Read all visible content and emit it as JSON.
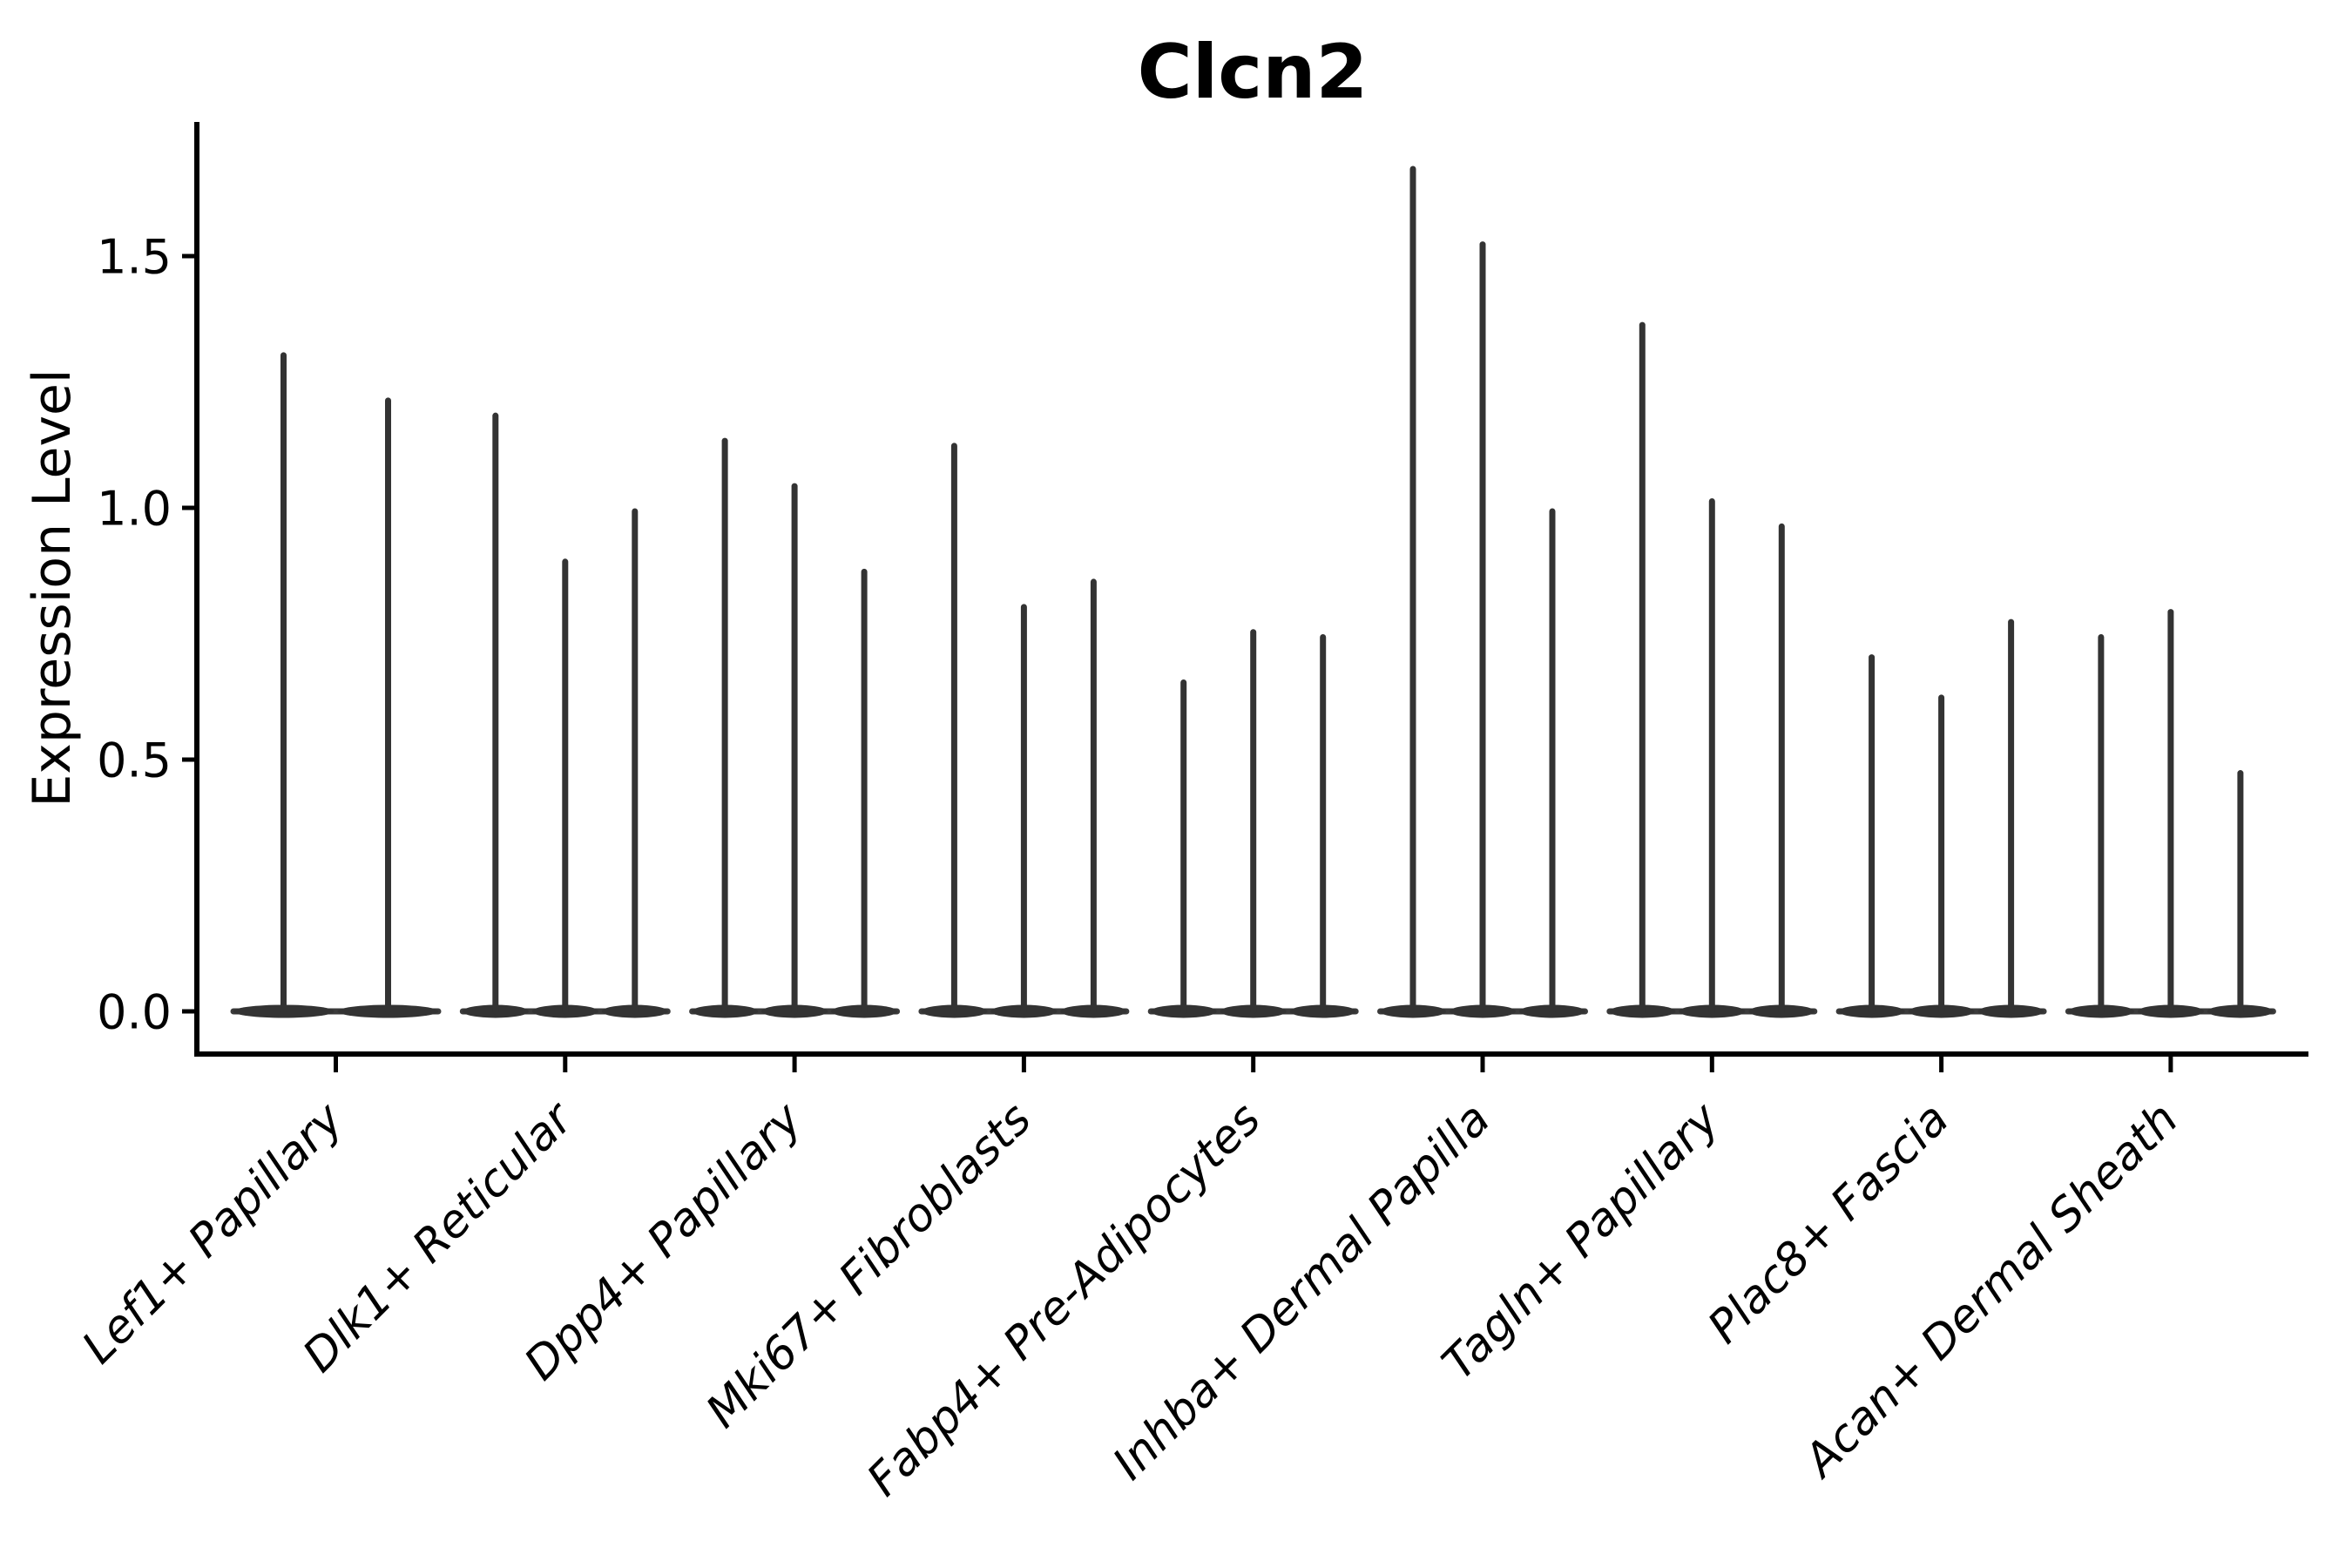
{
  "figure": {
    "background_color": "#ffffff",
    "axis_color": "#000000",
    "violin_color": "#333333",
    "baseline_color": "#3b3b3b"
  },
  "chart_data": {
    "type": "violin",
    "title": "Clcn2",
    "xlabel": "",
    "ylabel": "Expression Level",
    "legend": "none",
    "grid": false,
    "ylim": [
      -0.085,
      1.77
    ],
    "ytick_labels": [
      "0.0",
      "0.5",
      "1.0",
      "1.5"
    ],
    "ytick_values": [
      0.0,
      0.5,
      1.0,
      1.5
    ],
    "categories": [
      "Lef1+ Papillary",
      "Dlk1+ Reticular",
      "Dpp4+ Papillary",
      "Mki67+ Fibroblasts",
      "Fabp4+ Pre-Adipocytes",
      "Inhba+ Dermal Papilla",
      "Tagln+ Papillary",
      "Plac8+ Fascia",
      "Acan+ Dermal Sheath"
    ],
    "groups": [
      {
        "category": "Lef1+ Papillary",
        "violin_maxima": [
          1.31,
          1.22
        ]
      },
      {
        "category": "Dlk1+ Reticular",
        "violin_maxima": [
          1.19,
          0.9,
          1.0
        ]
      },
      {
        "category": "Dpp4+ Papillary",
        "violin_maxima": [
          1.14,
          1.05,
          0.88
        ]
      },
      {
        "category": "Mki67+ Fibroblasts",
        "violin_maxima": [
          1.13,
          0.81,
          0.86
        ]
      },
      {
        "category": "Fabp4+ Pre-Adipocytes",
        "violin_maxima": [
          0.66,
          0.76,
          0.75
        ]
      },
      {
        "category": "Inhba+ Dermal Papilla",
        "violin_maxima": [
          1.68,
          1.53,
          1.0
        ]
      },
      {
        "category": "Tagln+ Papillary",
        "violin_maxima": [
          1.37,
          1.02,
          0.97
        ]
      },
      {
        "category": "Plac8+ Fascia",
        "violin_maxima": [
          0.71,
          0.63,
          0.78
        ]
      },
      {
        "category": "Acan+ Dermal Sheath",
        "violin_maxima": [
          0.75,
          0.8,
          0.48
        ]
      }
    ],
    "violin_baseline_value": 0.0,
    "violin_shape_note": "each violin collapsed at 0 with a thin vertical tail up to its maximum"
  }
}
